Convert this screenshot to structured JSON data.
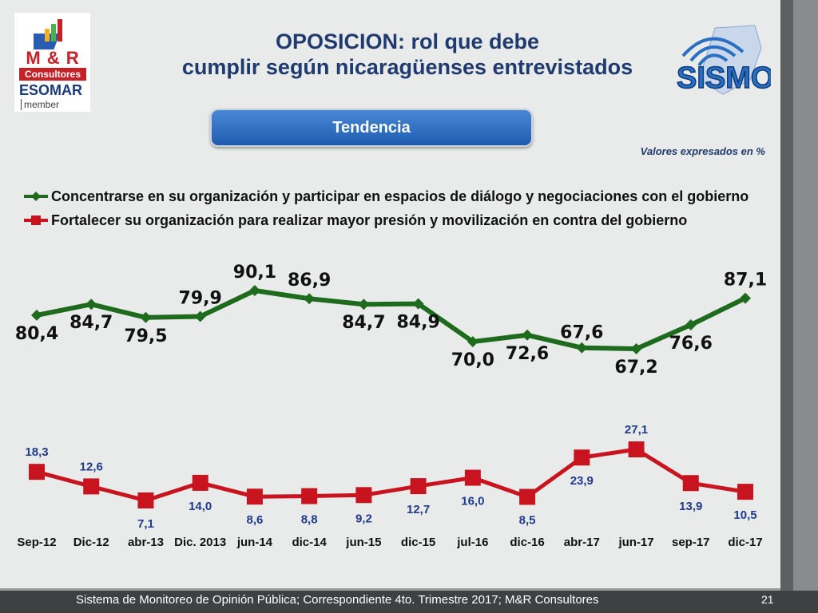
{
  "slide": {
    "title_line1": "OPOSICION:  rol que debe",
    "title_line2": "cumplir según  nicaragüenses entrevistados",
    "button_label": "Tendencia",
    "note": "Valores expresados en %",
    "footer": "Sistema de Monitoreo de Opinión Pública; Correspondiente 4to. Trimestre 2017; M&R Consultores",
    "page_number": "21"
  },
  "logos": {
    "mr_brand": "M & R",
    "mr_sub": "Consultores",
    "esomar": "ESOMAR",
    "member": "member",
    "sismo": "SISMO"
  },
  "colors": {
    "series1": "#1e6b1e",
    "series2": "#c8141e",
    "labels2": "#1f3a8a",
    "axis_text": "#111111"
  },
  "chart_data": {
    "type": "line",
    "categories": [
      "Sep-12",
      "Dic-12",
      "abr-13",
      "Dic. 2013",
      "jun-14",
      "dic-14",
      "jun-15",
      "dic-15",
      "jul-16",
      "dic-16",
      "abr-17",
      "jun-17",
      "sep-17",
      "dic-17"
    ],
    "series": [
      {
        "name": "Concentrarse en su organización y participar en espacios de diálogo y negociaciones con el gobierno",
        "values": [
          80.4,
          84.7,
          79.5,
          79.9,
          90.1,
          86.9,
          84.7,
          84.9,
          70.0,
          72.6,
          67.6,
          67.2,
          76.6,
          87.1
        ],
        "labels": [
          "80,4",
          "84,7",
          "79,5",
          "79,9",
          "90,1",
          "86,9",
          "84,7",
          "84,9",
          "70,0",
          "72,6",
          "67,6",
          "67,2",
          "76,6",
          "87,1"
        ]
      },
      {
        "name": "Fortalecer su organización para realizar mayor presión y movilización en contra del gobierno",
        "values": [
          18.3,
          12.6,
          7.1,
          14.0,
          8.6,
          8.8,
          9.2,
          12.7,
          16.0,
          8.5,
          23.9,
          27.1,
          13.9,
          10.5
        ],
        "labels": [
          "18,3",
          "12,6",
          "7,1",
          "14,0",
          "8,6",
          "8,8",
          "9,2",
          "12,7",
          "16,0",
          "8,5",
          "23,9",
          "27,1",
          "13,9",
          "10,5"
        ]
      }
    ],
    "legend": "top",
    "grid": false
  }
}
